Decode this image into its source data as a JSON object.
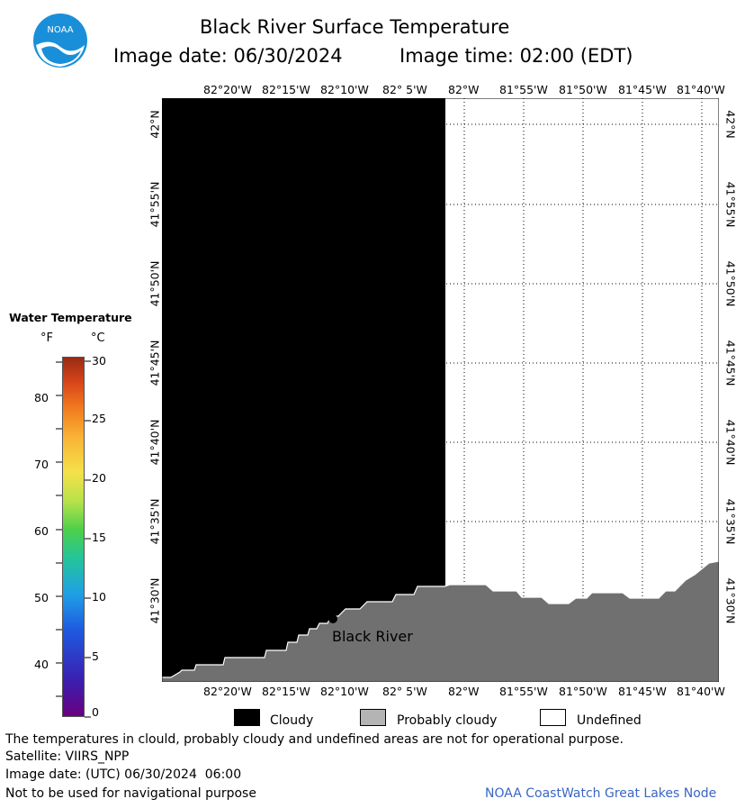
{
  "title": "Black River Surface Temperature",
  "image_date_label": "Image date: 06/30/2024",
  "image_time_label": "Image time: 02:00 (EDT)",
  "logo_text": "NOAA",
  "lon_labels": [
    "82°20'W",
    "82°15'W",
    "82°10'W",
    "82° 5'W",
    "82°W",
    "81°55'W",
    "81°50'W",
    "81°45'W",
    "81°40'W"
  ],
  "lat_labels": [
    "42°N",
    "41°55'N",
    "41°50'N",
    "41°45'N",
    "41°40'N",
    "41°35'N",
    "41°30'N"
  ],
  "place_label": "Black River",
  "colorbar": {
    "title": "Water Temperature",
    "f_unit": "°F",
    "c_unit": "°C",
    "f_ticks": [
      "80",
      "70",
      "60",
      "50",
      "40"
    ],
    "c_ticks": [
      "30",
      "25",
      "20",
      "15",
      "10",
      "5",
      "0"
    ]
  },
  "legend": {
    "cloudy": "Cloudy",
    "probably_cloudy": "Probably cloudy",
    "undefined": "Undefined"
  },
  "colors": {
    "cloud": "#000000",
    "probably_cloudy": "#b4b4b4",
    "undefined": "#ffffff",
    "land": "#707070",
    "credit": "#3a66c4"
  },
  "footer": {
    "disclaimer": "The temperatures in clould, probably cloudy and undefined areas are not for operational purpose.",
    "satellite": "Satellite: VIIRS_NPP",
    "utc_date": "Image date: (UTC) 06/30/2024  06:00",
    "nav_warning": "Not to be used for navigational purpose",
    "credit": "NOAA CoastWatch Great Lakes Node"
  }
}
